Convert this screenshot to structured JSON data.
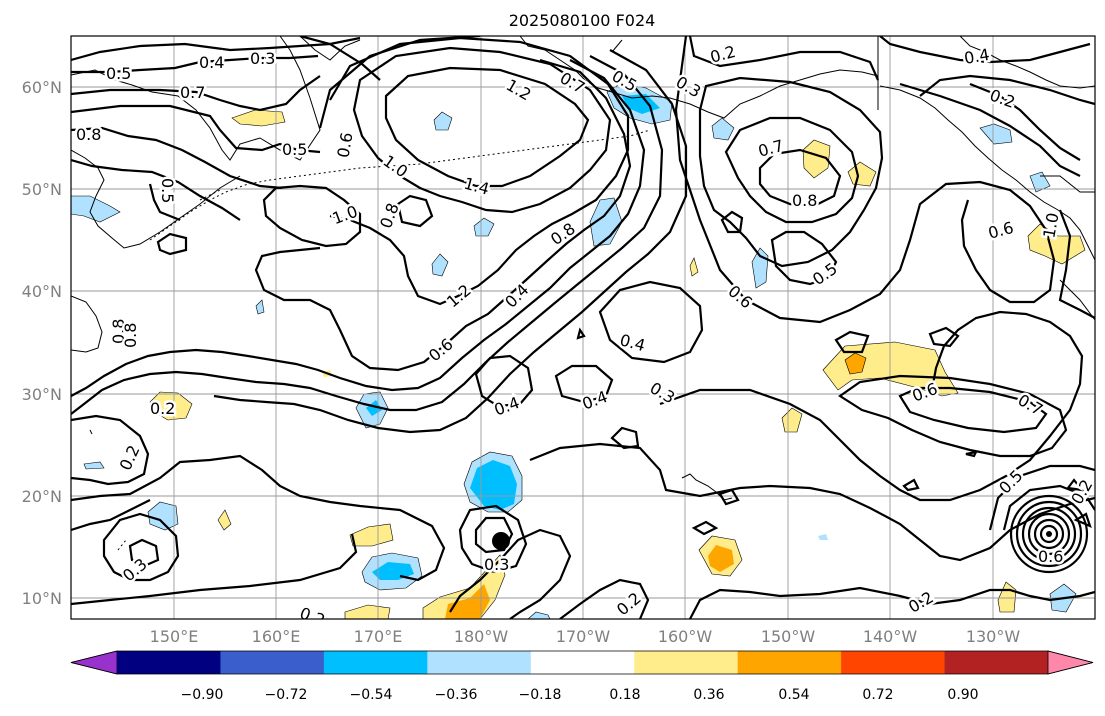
{
  "title": "2025080100 F024",
  "latitude_labels": [
    "60°N",
    "50°N",
    "40°N",
    "30°N",
    "20°N",
    "10°N"
  ],
  "longitude_labels": [
    "150°E",
    "160°E",
    "170°E",
    "180°W",
    "170°W",
    "160°W",
    "150°W",
    "140°W",
    "130°W"
  ],
  "colorbar": {
    "tick_labels": [
      "−0.90",
      "−0.72",
      "−0.54",
      "−0.36",
      "−0.18",
      "0.18",
      "0.36",
      "0.54",
      "0.72",
      "0.90"
    ],
    "colors": [
      "#9932cc",
      "#000080",
      "#3a5fcd",
      "#00bfff",
      "#b0e2ff",
      "#ffffff",
      "#ffec8b",
      "#ffa500",
      "#ff4500",
      "#b22222",
      "#ff88aa"
    ]
  },
  "contour_labels": [
    {
      "text": "0.5"
    },
    {
      "text": "0.4"
    },
    {
      "text": "0.3"
    },
    {
      "text": "0.7"
    },
    {
      "text": "0.8"
    },
    {
      "text": "0.5"
    },
    {
      "text": "0.5"
    },
    {
      "text": "0.6"
    },
    {
      "text": "1.0"
    },
    {
      "text": "1.2"
    },
    {
      "text": "1.4"
    },
    {
      "text": "1.0"
    },
    {
      "text": "0.8"
    },
    {
      "text": "0.7"
    },
    {
      "text": "0.5"
    },
    {
      "text": "0.3"
    },
    {
      "text": "0.2"
    },
    {
      "text": "0.4"
    },
    {
      "text": "0.2"
    },
    {
      "text": "0.7"
    },
    {
      "text": "0.8"
    },
    {
      "text": "0.8"
    },
    {
      "text": "0.6"
    },
    {
      "text": "0.5"
    },
    {
      "text": "0.6"
    },
    {
      "text": "0.4"
    },
    {
      "text": "1.2"
    },
    {
      "text": "0.4"
    },
    {
      "text": "0.6"
    },
    {
      "text": "0.8"
    },
    {
      "text": "0.2"
    },
    {
      "text": "0.4"
    },
    {
      "text": "0.4"
    },
    {
      "text": "0.3"
    },
    {
      "text": "0.6"
    },
    {
      "text": "0.7"
    },
    {
      "text": "0.5"
    },
    {
      "text": "0.2"
    },
    {
      "text": "0.3"
    },
    {
      "text": "0.3"
    },
    {
      "text": "0.2"
    },
    {
      "text": "0.2"
    },
    {
      "text": "0.2"
    },
    {
      "text": "0.6"
    },
    {
      "text": "1.0"
    },
    {
      "text": "0.8"
    },
    {
      "text": "0.2"
    }
  ],
  "map_extent": {
    "lon_min": 140,
    "lon_max": 238,
    "lat_min": 8,
    "lat_max": 65
  }
}
